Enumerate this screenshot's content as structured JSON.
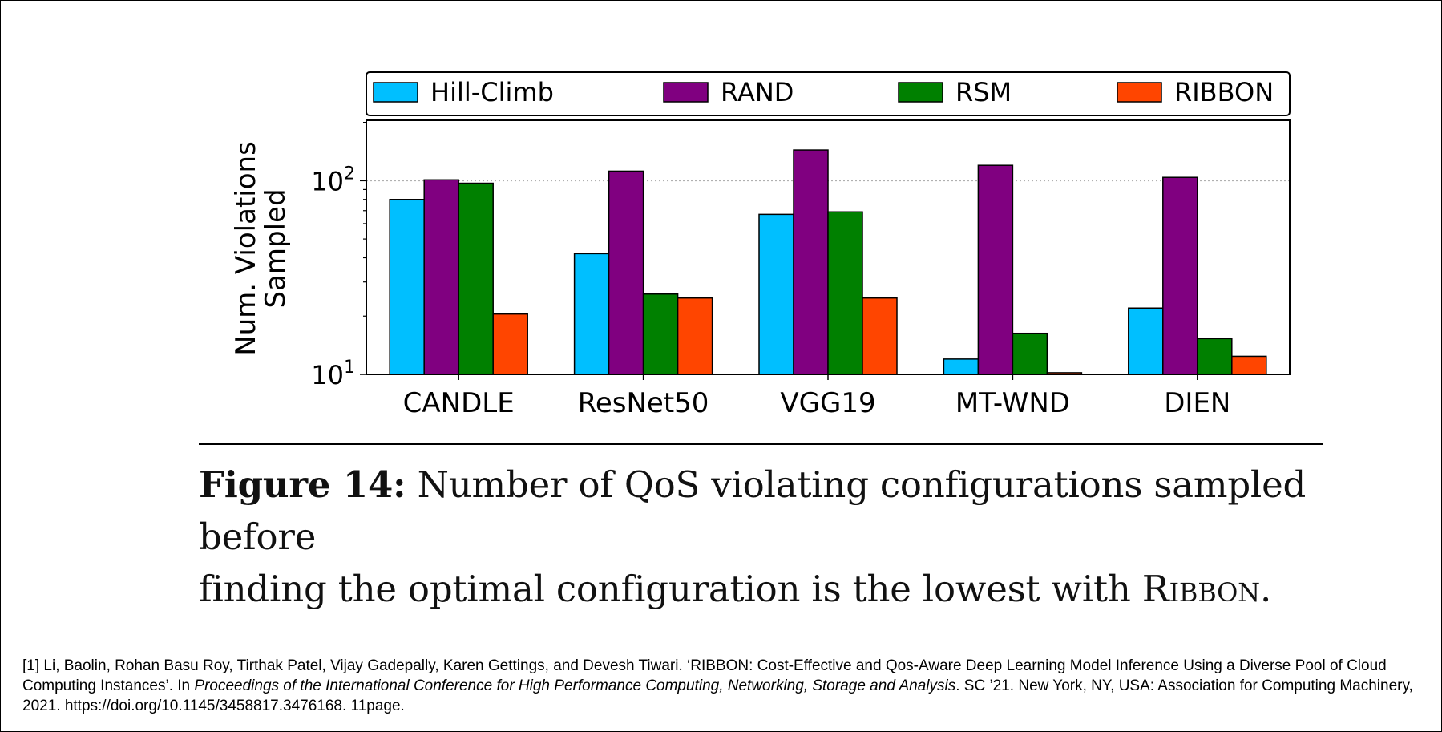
{
  "chart_data": {
    "type": "bar",
    "categories": [
      "CANDLE",
      "ResNet50",
      "VGG19",
      "MT-WND",
      "DIEN"
    ],
    "series": [
      {
        "name": "Hill-Climb",
        "color": "#00bfff",
        "values": [
          80,
          42,
          67,
          12,
          22
        ]
      },
      {
        "name": "RAND",
        "color": "#800080",
        "values": [
          101,
          112,
          144,
          120,
          104
        ]
      },
      {
        "name": "RSM",
        "color": "#008000",
        "values": [
          97,
          26,
          69,
          16.3,
          15.3
        ]
      },
      {
        "name": "RIBBON",
        "color": "#ff4500",
        "values": [
          20.5,
          24.8,
          24.8,
          10.2,
          12.4
        ]
      }
    ],
    "ylabel_line1": "Num. Violations",
    "ylabel_line2": "Sampled",
    "yscale": "log",
    "ylim": [
      10,
      205
    ],
    "yticks": [
      {
        "value": 10,
        "base": "10",
        "exp": "1"
      },
      {
        "value": 100,
        "base": "10",
        "exp": "2"
      }
    ],
    "gridline_at": 100,
    "legend_position": "top, above plot"
  },
  "caption": {
    "label": "Figure 14:",
    "line1": "Number of QoS violating configurations sampled before",
    "line2_pre": "finding the optimal configuration is the lowest with",
    "line2_smallcaps": "Ribbon",
    "line2_post": "."
  },
  "reference": {
    "part1": "[1] Li, Baolin, Rohan Basu Roy, Tirthak Patel, Vijay Gadepally, Karen Gettings, and Devesh Tiwari. ‘RIBBON: Cost-Effective and Qos-Aware Deep Learning Model Inference Using a Diverse Pool of Cloud Computing Instances’. In ",
    "venue": "Proceedings of the International Conference for High Performance Computing, Networking, Storage and Analysis",
    "part2": ". SC ’21. New York, NY, USA: Association for Computing Machinery, 2021. https://doi.org/10.1145/3458817.3476168. 11page."
  }
}
